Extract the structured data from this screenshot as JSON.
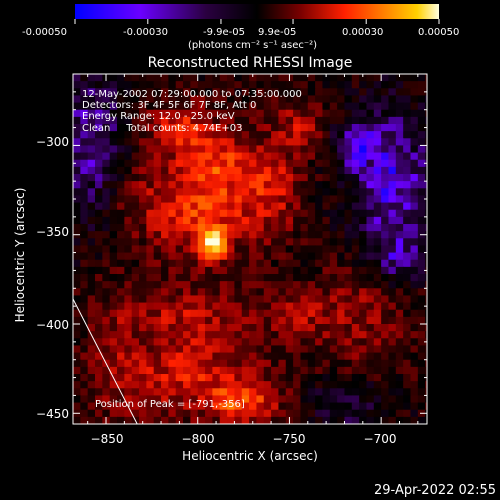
{
  "colorbar": {
    "tick_labels": [
      "-0.00050",
      "-0.00030",
      "-9.9e-05",
      "9.9e-05",
      "0.00030",
      "0.00050"
    ],
    "units_label": "(photons cm⁻² s⁻¹ asec⁻²)",
    "range": [
      -0.0005,
      0.0005
    ],
    "colormap": [
      "#0000ff",
      "#6a00ff",
      "#2a0040",
      "#000000",
      "#3a0000",
      "#a00000",
      "#ff2000",
      "#ff7a00",
      "#ffc000",
      "#ffffe0"
    ]
  },
  "footer": {
    "timestamp": "29-Apr-2022 02:55"
  },
  "chart_data": {
    "type": "heatmap",
    "title": "Reconstructed RHESSI Image",
    "xlabel": "Heliocentric X (arcsec)",
    "ylabel": "Heliocentric Y (arcsec)",
    "xlim": [
      -868,
      -675
    ],
    "ylim": [
      -456,
      -260
    ],
    "x_ticks": [
      -850,
      -800,
      -750,
      -700
    ],
    "y_ticks": [
      -300,
      -350,
      -400,
      -450
    ],
    "x_tick_labels": [
      "−850",
      "−800",
      "−750",
      "−700"
    ],
    "y_tick_labels": [
      "−300",
      "−350",
      "−400",
      "−450"
    ],
    "info_lines": [
      "12-May-2002 07:29:00.000 to 07:35:00.000",
      "Detectors: 3F 4F 5F 6F 7F 8F, Att 0",
      "Energy Range: 12.0 - 25.0 keV",
      "Clean     Total counts: 4.74E+03"
    ],
    "peak_label": "Position of Peak = [-791,-356]",
    "peak": [
      -791,
      -356
    ],
    "limb_line": [
      [
        -868,
        -386
      ],
      [
        -833,
        -456
      ]
    ],
    "sources": [
      {
        "x": -791,
        "y": -356,
        "sx": 5,
        "sy": 6,
        "amp": 1.0
      },
      {
        "x": -800,
        "y": -340,
        "sx": 20,
        "sy": 15,
        "amp": 0.55
      },
      {
        "x": -790,
        "y": -310,
        "sx": 16,
        "sy": 13,
        "amp": 0.5
      },
      {
        "x": -810,
        "y": -290,
        "sx": 14,
        "sy": 10,
        "amp": 0.45
      },
      {
        "x": -760,
        "y": -325,
        "sx": 12,
        "sy": 18,
        "amp": 0.4
      },
      {
        "x": -745,
        "y": -290,
        "sx": 10,
        "sy": 10,
        "amp": 0.35
      },
      {
        "x": -805,
        "y": -395,
        "sx": 26,
        "sy": 14,
        "amp": 0.35
      },
      {
        "x": -805,
        "y": -430,
        "sx": 30,
        "sy": 14,
        "amp": 0.42
      },
      {
        "x": -775,
        "y": -445,
        "sx": 14,
        "sy": 8,
        "amp": 0.5
      },
      {
        "x": -710,
        "y": -395,
        "sx": 18,
        "sy": 22,
        "amp": 0.3
      },
      {
        "x": -845,
        "y": -420,
        "sx": 10,
        "sy": 30,
        "amp": 0.18
      },
      {
        "x": -835,
        "y": -325,
        "sx": 14,
        "sy": 14,
        "amp": 0.2
      },
      {
        "x": -745,
        "y": -395,
        "sx": 12,
        "sy": 10,
        "amp": 0.28
      }
    ],
    "negative_regions": [
      {
        "x": -858,
        "y": -300,
        "sx": 14,
        "sy": 30,
        "amp": -0.45
      },
      {
        "x": -695,
        "y": -320,
        "sx": 16,
        "sy": 30,
        "amp": -0.55
      },
      {
        "x": -715,
        "y": -300,
        "sx": 8,
        "sy": 8,
        "amp": -0.4
      },
      {
        "x": -720,
        "y": -445,
        "sx": 16,
        "sy": 10,
        "amp": -0.3
      },
      {
        "x": -690,
        "y": -365,
        "sx": 10,
        "sy": 10,
        "amp": -0.35
      }
    ],
    "grid": false
  }
}
